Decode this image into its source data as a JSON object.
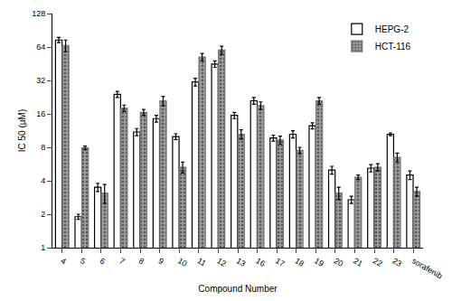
{
  "chart_data": {
    "type": "bar",
    "x_label": "Compound Number",
    "y_label": "IC 50 (μM)",
    "categories": [
      "4",
      "5",
      "6",
      "7",
      "8",
      "9",
      "10",
      "11",
      "12",
      "13",
      "16",
      "17",
      "18",
      "19",
      "20",
      "21",
      "22",
      "23",
      "sorafenib"
    ],
    "series": [
      {
        "name": "HEPG-2",
        "color": "#ffffff",
        "values": [
          74,
          1.9,
          3.5,
          24,
          11,
          14.5,
          10,
          31,
          45,
          15.5,
          21,
          9.7,
          10.5,
          12.5,
          5,
          2.7,
          5.2,
          10.5,
          4.5
        ],
        "errors": [
          4,
          0.1,
          0.3,
          1.5,
          0.8,
          1,
          0.6,
          2.5,
          3,
          1,
          1.5,
          0.6,
          0.8,
          0.8,
          0.4,
          0.2,
          0.4,
          0.3,
          0.4
        ]
      },
      {
        "name": "HCT-116",
        "color": "#9a9a9a",
        "values": [
          66,
          7.9,
          3.1,
          18,
          16.5,
          21,
          5.3,
          52,
          60,
          10.5,
          19,
          9.3,
          7.5,
          21,
          3.1,
          4.3,
          5.3,
          6.5,
          3.2
        ],
        "errors": [
          8,
          0.3,
          0.6,
          1.2,
          1,
          2,
          0.6,
          4,
          5,
          1,
          1.5,
          0.8,
          0.5,
          1.5,
          0.4,
          0.2,
          0.4,
          0.6,
          0.3
        ]
      }
    ],
    "log": "y",
    "ylim": [
      1,
      128
    ],
    "yticks": [
      1,
      2,
      4,
      8,
      16,
      32,
      64,
      128
    ],
    "grid": false,
    "legend": "top right"
  }
}
